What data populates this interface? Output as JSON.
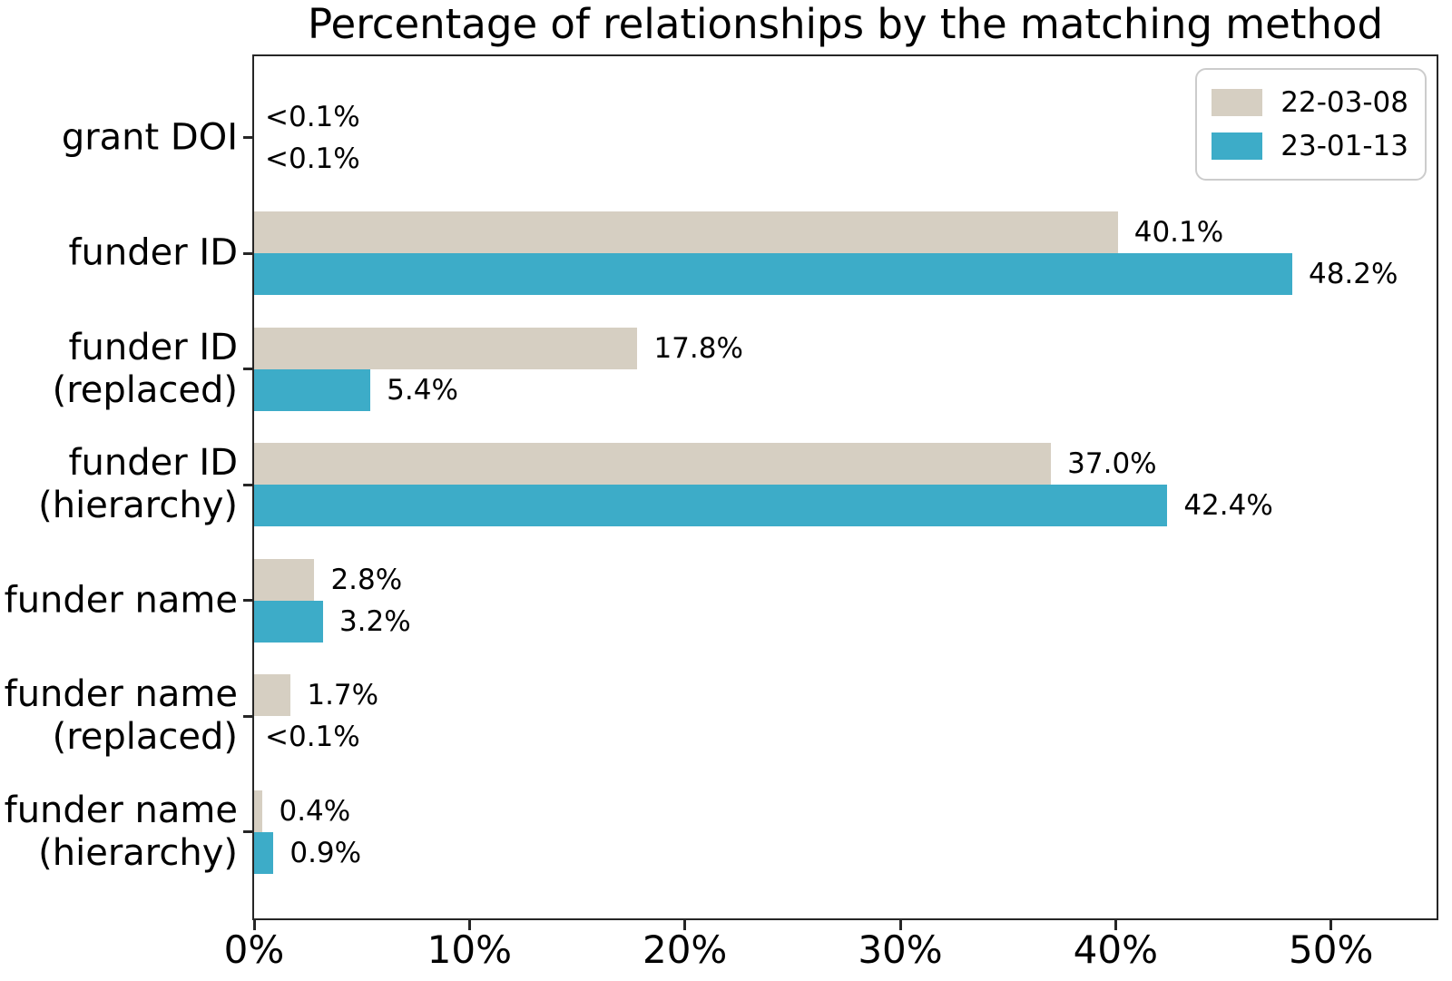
{
  "chart_data": {
    "type": "bar",
    "orientation": "horizontal",
    "title": "Percentage of relationships by the matching method",
    "categories": [
      {
        "lines": [
          "grant DOI"
        ]
      },
      {
        "lines": [
          "funder ID"
        ]
      },
      {
        "lines": [
          "funder ID",
          "(replaced)"
        ]
      },
      {
        "lines": [
          "funder ID",
          "(hierarchy)"
        ]
      },
      {
        "lines": [
          "funder name"
        ]
      },
      {
        "lines": [
          "funder name",
          "(replaced)"
        ]
      },
      {
        "lines": [
          "funder name",
          "(hierarchy)"
        ]
      }
    ],
    "series": [
      {
        "name": "22-03-08",
        "color": "#d6cfc2",
        "values": [
          0.05,
          40.1,
          17.8,
          37.0,
          2.8,
          1.7,
          0.4
        ],
        "value_labels": [
          "<0.1%",
          "40.1%",
          "17.8%",
          "37.0%",
          "2.8%",
          "1.7%",
          "0.4%"
        ]
      },
      {
        "name": "23-01-13",
        "color": "#3dacc8",
        "values": [
          0.05,
          48.2,
          5.4,
          42.4,
          3.2,
          0.05,
          0.9
        ],
        "value_labels": [
          "<0.1%",
          "48.2%",
          "5.4%",
          "42.4%",
          "3.2%",
          "<0.1%",
          "0.9%"
        ]
      }
    ],
    "xlabel": "",
    "ylabel": "",
    "xlim": [
      0,
      54.9
    ],
    "xticks": {
      "values": [
        0,
        10,
        20,
        30,
        40,
        50
      ],
      "labels": [
        "0%",
        "10%",
        "20%",
        "30%",
        "40%",
        "50%"
      ]
    },
    "grid": false,
    "legend_position": "upper right"
  },
  "style": {
    "axis_color": "#262626",
    "text_color": "#000000",
    "background": "#ffffff",
    "legend_border": "#cccccc"
  }
}
